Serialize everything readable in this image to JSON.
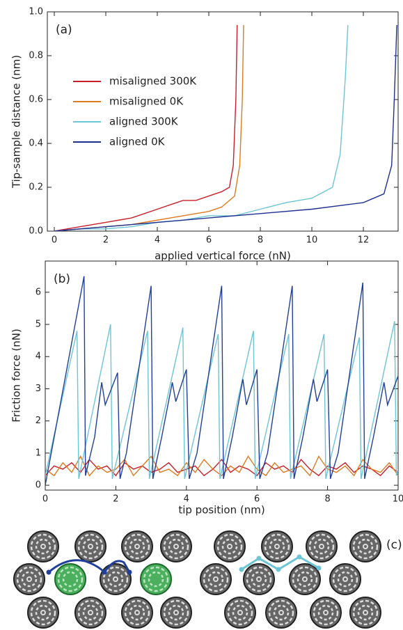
{
  "chart_data": [
    {
      "type": "line",
      "annotation": "(a)",
      "x_label": "applied vertical force (nN)",
      "y_label": "Tip-sample distance (nm)",
      "xlim": [
        -0.27,
        13.35
      ],
      "ylim": [
        0,
        1
      ],
      "xticks": [
        0,
        2,
        4,
        6,
        8,
        10,
        12
      ],
      "yticks": [
        {
          "value": 0,
          "label": "0.0"
        },
        0.2,
        0.4,
        0.6,
        0.8,
        {
          "value": 1,
          "label": "1.0"
        }
      ],
      "legend": "upper left",
      "series": [
        {
          "name": "misaligned 300K",
          "color": "#c8202a",
          "x": [
            0,
            0.5,
            1,
            1.5,
            2,
            2.5,
            3,
            3.5,
            4,
            4.5,
            5,
            5.5,
            6,
            6.5,
            6.8,
            6.95,
            7.05,
            7.1
          ],
          "values": [
            0,
            0.01,
            0.02,
            0.03,
            0.04,
            0.05,
            0.06,
            0.08,
            0.1,
            0.12,
            0.14,
            0.14,
            0.16,
            0.18,
            0.2,
            0.3,
            0.6,
            0.94
          ]
        },
        {
          "name": "misaligned 0K",
          "color": "#e07a1f",
          "x": [
            0,
            1,
            2,
            3,
            4,
            5,
            6,
            6.5,
            7,
            7.2,
            7.3,
            7.35
          ],
          "values": [
            0,
            0.01,
            0.02,
            0.03,
            0.05,
            0.07,
            0.09,
            0.11,
            0.16,
            0.3,
            0.6,
            0.94
          ]
        },
        {
          "name": "aligned 300K",
          "color": "#6cc5d4",
          "x": [
            0,
            1,
            2,
            3,
            4,
            5,
            6,
            7,
            8,
            9,
            10,
            10.8,
            11.1,
            11.3,
            11.4
          ],
          "values": [
            0,
            0.01,
            0.01,
            0.02,
            0.04,
            0.05,
            0.07,
            0.07,
            0.1,
            0.13,
            0.15,
            0.2,
            0.35,
            0.7,
            0.94
          ]
        },
        {
          "name": "aligned 0K",
          "color": "#1f2f8f",
          "x": [
            0,
            2,
            4,
            6,
            8,
            10,
            12,
            12.8,
            13.1,
            13.2,
            13.3
          ],
          "values": [
            0,
            0.02,
            0.04,
            0.06,
            0.08,
            0.1,
            0.13,
            0.17,
            0.3,
            0.6,
            0.94
          ]
        }
      ]
    },
    {
      "type": "line",
      "annotation": "(b)",
      "x_label": "tip position (nm)",
      "y_label": "Friction force (nN)",
      "xlim": [
        0,
        10
      ],
      "ylim": [
        -0.15,
        6.97
      ],
      "xticks": [
        0,
        2,
        4,
        6,
        8,
        10
      ],
      "yticks": [
        0,
        1,
        2,
        3,
        4,
        5,
        6
      ],
      "series": [
        {
          "color": "#c8202a",
          "x": [
            0,
            0.25,
            0.5,
            0.75,
            1,
            1.25,
            1.5,
            1.75,
            2,
            2.25,
            2.5,
            2.75,
            3,
            3.25,
            3.5,
            3.75,
            4,
            4.25,
            4.5,
            4.75,
            5,
            5.25,
            5.5,
            5.75,
            6,
            6.25,
            6.5,
            6.75,
            7,
            7.25,
            7.5,
            7.75,
            8,
            8.25,
            8.5,
            8.75,
            9,
            9.25,
            9.5,
            9.75,
            10
          ],
          "values": [
            0.3,
            0.6,
            0.5,
            0.7,
            0.4,
            0.8,
            0.5,
            0.6,
            0.3,
            0.7,
            0.5,
            0.6,
            0.4,
            0.5,
            0.7,
            0.4,
            0.5,
            0.6,
            0.3,
            0.5,
            0.8,
            0.4,
            0.6,
            0.5,
            0.3,
            0.7,
            0.5,
            0.6,
            0.4,
            0.8,
            0.5,
            0.3,
            0.6,
            0.5,
            0.7,
            0.4,
            0.6,
            0.5,
            0.3,
            0.6,
            0.4
          ]
        },
        {
          "color": "#e07a1f",
          "x": [
            0,
            0.25,
            0.5,
            0.75,
            1,
            1.25,
            1.5,
            1.75,
            2,
            2.25,
            2.5,
            2.75,
            3,
            3.25,
            3.5,
            3.75,
            4,
            4.25,
            4.5,
            4.75,
            5,
            5.25,
            5.5,
            5.75,
            6,
            6.25,
            6.5,
            6.75,
            7,
            7.25,
            7.5,
            7.75,
            8,
            8.25,
            8.5,
            8.75,
            9,
            9.25,
            9.5,
            9.75,
            10
          ],
          "values": [
            0.5,
            0.3,
            0.7,
            0.4,
            0.9,
            0.3,
            0.6,
            0.4,
            0.5,
            0.8,
            0.3,
            0.6,
            0.9,
            0.4,
            0.5,
            0.3,
            0.7,
            0.4,
            0.8,
            0.5,
            0.3,
            0.6,
            0.4,
            0.9,
            0.5,
            0.3,
            0.7,
            0.4,
            0.5,
            0.6,
            0.3,
            0.9,
            0.5,
            0.4,
            0.6,
            0.3,
            0.8,
            0.5,
            0.4,
            0.7,
            0.3
          ]
        },
        {
          "color": "#6cc5d4",
          "x": [
            0,
            0.9,
            0.95,
            1.85,
            1.9,
            2.9,
            2.95,
            3.9,
            3.95,
            4.9,
            4.95,
            5.9,
            5.95,
            6.9,
            6.95,
            7.9,
            7.95,
            8.9,
            8.95,
            9.9,
            9.95,
            10
          ],
          "values": [
            0.3,
            4.8,
            0.2,
            5.0,
            0.2,
            4.8,
            0.2,
            4.9,
            0.2,
            4.7,
            0.2,
            4.8,
            0.2,
            4.7,
            0.2,
            4.7,
            0.2,
            4.6,
            0.2,
            5.1,
            0.3,
            0.5
          ]
        },
        {
          "color": "#1f3f9a",
          "x": [
            0,
            1.1,
            1.14,
            1.4,
            1.6,
            1.7,
            2.05,
            2.12,
            2.3,
            3.0,
            3.05,
            3.3,
            3.6,
            3.7,
            4.0,
            4.08,
            4.3,
            5.0,
            5.05,
            5.3,
            5.6,
            5.7,
            6.0,
            6.08,
            6.3,
            7.0,
            7.05,
            7.3,
            7.6,
            7.7,
            8.0,
            8.08,
            8.3,
            9.0,
            9.05,
            9.3,
            9.6,
            9.7,
            10.0
          ],
          "values": [
            0,
            6.5,
            0.3,
            1.5,
            3.2,
            2.5,
            3.5,
            0.2,
            1.0,
            6.2,
            0.2,
            1.5,
            3.2,
            2.6,
            3.6,
            0.2,
            1.0,
            6.2,
            0.2,
            1.5,
            3.3,
            2.5,
            3.6,
            0.2,
            1.0,
            6.2,
            0.2,
            1.5,
            3.3,
            2.6,
            3.6,
            0.2,
            1.0,
            6.3,
            0.2,
            1.5,
            3.2,
            2.5,
            3.4
          ]
        }
      ]
    }
  ],
  "panel_c": {
    "label": "(c)"
  }
}
